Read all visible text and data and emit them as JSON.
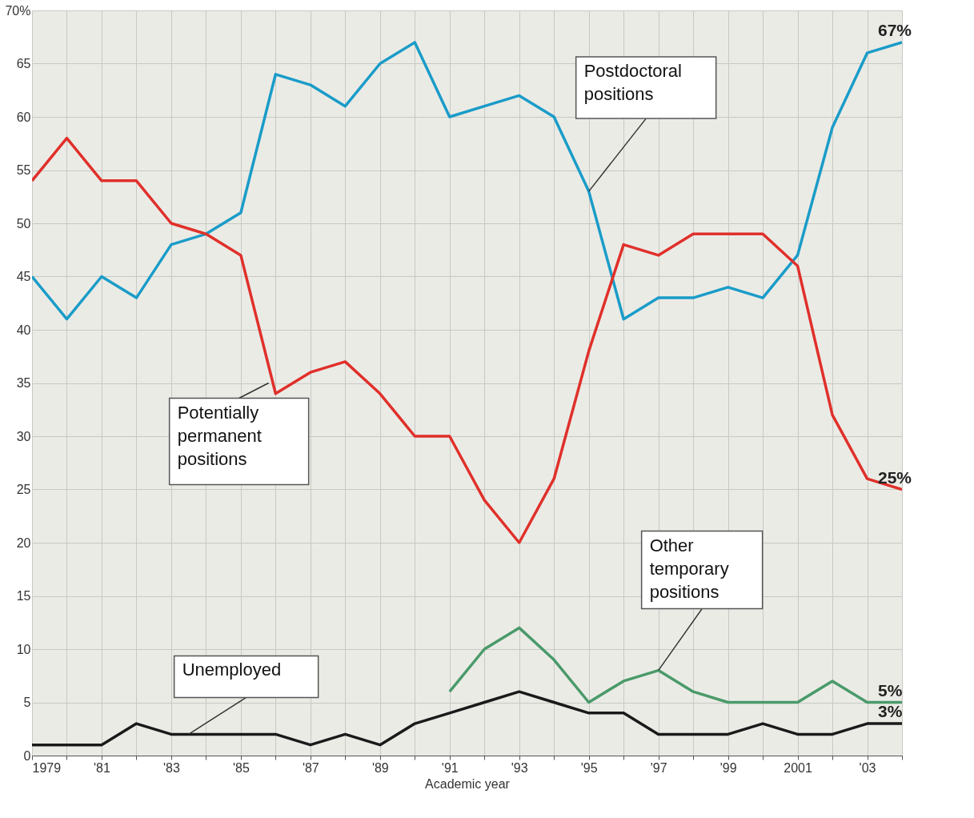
{
  "chart_data": {
    "type": "line",
    "xlabel": "Academic year",
    "x": [
      1979,
      1980,
      1981,
      1982,
      1983,
      1984,
      1985,
      1986,
      1987,
      1988,
      1989,
      1990,
      1991,
      1992,
      1993,
      1994,
      1995,
      1996,
      1997,
      1998,
      1999,
      2000,
      2001,
      2002,
      2003,
      2004
    ],
    "series": [
      {
        "color": "#1a9cc8",
        "values": [
          45,
          41,
          45,
          43,
          48,
          49,
          51,
          64,
          63,
          61,
          65,
          67,
          60,
          61,
          62,
          60,
          53,
          41,
          43,
          43,
          44,
          43,
          47,
          59,
          66,
          67
        ]
      },
      {
        "color": "#e0302a",
        "values": [
          54,
          58,
          54,
          54,
          50,
          49,
          47,
          34,
          36,
          37,
          34,
          30,
          30,
          24,
          20,
          26,
          38,
          48,
          47,
          49,
          49,
          49,
          46,
          32,
          26,
          25
        ]
      },
      {
        "color": "#4a9a6a",
        "values": [
          null,
          null,
          null,
          null,
          null,
          null,
          null,
          null,
          null,
          null,
          null,
          null,
          6,
          10,
          12,
          9,
          5,
          7,
          8,
          6,
          5,
          5,
          5,
          7,
          5,
          5
        ]
      },
      {
        "color": "#1a1a1a",
        "values": [
          1,
          1,
          1,
          3,
          2,
          2,
          2,
          2,
          1,
          2,
          1,
          3,
          4,
          5,
          6,
          5,
          4,
          4,
          2,
          2,
          2,
          3,
          2,
          2,
          3,
          3
        ]
      }
    ],
    "xlim": [
      1979,
      2004
    ],
    "xticks": [
      1979,
      {
        "value": 1980,
        "label": null
      },
      {
        "value": 1981,
        "label": "'81"
      },
      {
        "value": 1982,
        "label": null
      },
      {
        "value": 1983,
        "label": "'83"
      },
      {
        "value": 1984,
        "label": null
      },
      {
        "value": 1985,
        "label": "'85"
      },
      {
        "value": 1986,
        "label": null
      },
      {
        "value": 1987,
        "label": "'87"
      },
      {
        "value": 1988,
        "label": null
      },
      {
        "value": 1989,
        "label": "'89"
      },
      {
        "value": 1990,
        "label": null
      },
      {
        "value": 1991,
        "label": "'91"
      },
      {
        "value": 1992,
        "label": null
      },
      {
        "value": 1993,
        "label": "'93"
      },
      {
        "value": 1994,
        "label": null
      },
      {
        "value": 1995,
        "label": "'95"
      },
      {
        "value": 1996,
        "label": null
      },
      {
        "value": 1997,
        "label": "'97"
      },
      {
        "value": 1998,
        "label": null
      },
      {
        "value": 1999,
        "label": "'99"
      },
      {
        "value": 2000,
        "label": null
      },
      2001,
      {
        "value": 2002,
        "label": null
      },
      {
        "value": 2003,
        "label": "'03"
      },
      {
        "value": 2004,
        "label": null
      }
    ],
    "ylim": [
      0,
      70
    ],
    "yticks": [
      0,
      5,
      10,
      15,
      20,
      25,
      30,
      35,
      40,
      45,
      50,
      55,
      60,
      65,
      {
        "value": 70,
        "label": "70%"
      }
    ],
    "grid": true,
    "legend": false,
    "marker": "none",
    "annotations": [
      {
        "text": "Postdoctoral\npositions",
        "x": 1995,
        "y": 53
      },
      {
        "text": "Potentially\npermanent\npositions",
        "x": 1985.8,
        "y": 35
      },
      {
        "text": "Other\ntemporary\npositions",
        "x": 1997,
        "y": 8
      },
      {
        "text": "Unemployed",
        "x": 1983.5,
        "y": 2
      },
      {
        "text": "67%",
        "x": 2004,
        "y": 67
      },
      {
        "text": "25%",
        "x": 2004,
        "y": 25
      },
      {
        "text": "5%",
        "x": 2004,
        "y": 5
      },
      {
        "text": "3%",
        "x": 2004,
        "y": 3
      }
    ]
  }
}
